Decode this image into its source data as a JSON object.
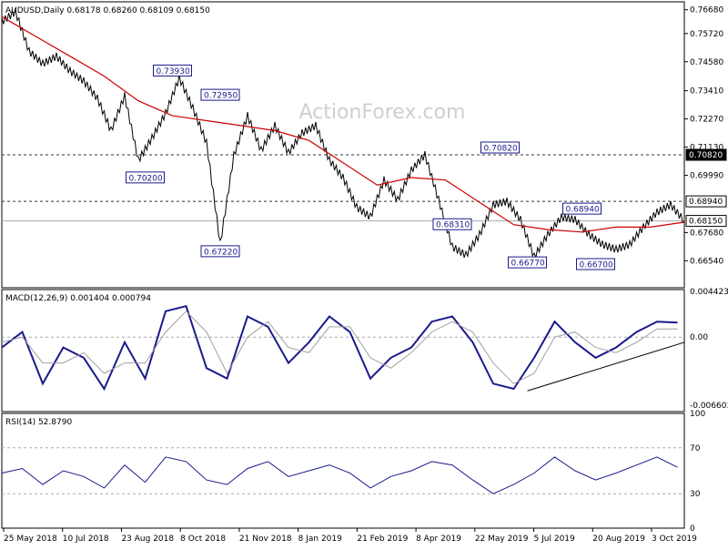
{
  "chart_data": [
    {
      "type": "line",
      "panel": "price",
      "title": "AUDUSD,Daily  0.68178 0.68260 0.68109 0.68150",
      "symbol": "AUDUSD",
      "timeframe": "Daily",
      "ohlc": {
        "open": "0.68178",
        "high": "0.68260",
        "low": "0.68109",
        "close": "0.68150"
      },
      "watermark": "ActionForex.com",
      "ylim": [
        0.6545,
        0.77
      ],
      "yticks": [
        "0.76680",
        "0.75720",
        "0.74580",
        "0.73410",
        "0.72270",
        "0.71130",
        "0.69990",
        "0.67680",
        "0.66540"
      ],
      "series": [
        {
          "name": "AUDUSD",
          "color": "#000000",
          "x": [
            0,
            2,
            4,
            6,
            8,
            10,
            12,
            14,
            16,
            18,
            20,
            22,
            24,
            26,
            28,
            30,
            32,
            34,
            36,
            38,
            40,
            42,
            44,
            46,
            48,
            50,
            52,
            54,
            56,
            58,
            60,
            62,
            64,
            66,
            68,
            70,
            72,
            74,
            76,
            78,
            80,
            82,
            84,
            86,
            88,
            90,
            92,
            94,
            96,
            98,
            100
          ],
          "values": [
            0.762,
            0.766,
            0.75,
            0.745,
            0.748,
            0.742,
            0.738,
            0.731,
            0.718,
            0.732,
            0.706,
            0.715,
            0.725,
            0.7393,
            0.727,
            0.713,
            0.6722,
            0.708,
            0.724,
            0.71,
            0.72,
            0.709,
            0.717,
            0.72,
            0.706,
            0.699,
            0.687,
            0.6831,
            0.698,
            0.69,
            0.702,
            0.7082,
            0.69,
            0.671,
            0.6677,
            0.676,
            0.688,
            0.6894,
            0.682,
            0.667,
            0.676,
            0.683,
            0.682,
            0.676,
            0.672,
            0.67,
            0.672,
            0.679,
            0.685,
            0.688,
            0.6815
          ]
        },
        {
          "name": "MA",
          "color": "#cc0000",
          "x": [
            0,
            5,
            10,
            15,
            20,
            25,
            30,
            35,
            40,
            45,
            50,
            55,
            60,
            65,
            70,
            75,
            80,
            85,
            90,
            95,
            100
          ],
          "values": [
            0.764,
            0.756,
            0.748,
            0.74,
            0.73,
            0.724,
            0.722,
            0.72,
            0.718,
            0.714,
            0.705,
            0.696,
            0.699,
            0.698,
            0.689,
            0.68,
            0.678,
            0.677,
            0.679,
            0.679,
            0.681
          ]
        }
      ],
      "annotations": [
        {
          "label": "0.73930",
          "x": 25,
          "y": 0.7393
        },
        {
          "label": "0.72950",
          "x": 32,
          "y": 0.7295
        },
        {
          "label": "0.70200",
          "x": 21,
          "y": 0.702
        },
        {
          "label": "0.67220",
          "x": 32,
          "y": 0.6722
        },
        {
          "label": "0.70820",
          "x": 73,
          "y": 0.7082
        },
        {
          "label": "0.68310",
          "x": 66,
          "y": 0.6831
        },
        {
          "label": "0.68940",
          "x": 85,
          "y": 0.6894
        },
        {
          "label": "0.66770",
          "x": 77,
          "y": 0.6677
        },
        {
          "label": "0.66700",
          "x": 87,
          "y": 0.667
        }
      ],
      "hlines": [
        {
          "label": "0.70820",
          "y": 0.7082,
          "style": "dashed"
        },
        {
          "label": "0.68940",
          "y": 0.6894,
          "style": "dashed"
        },
        {
          "label": "0.68150",
          "y": 0.6815,
          "style": "solid"
        }
      ],
      "grid": false
    },
    {
      "type": "line",
      "panel": "macd",
      "title": "MACD(12,26,9) 0.001404 0.000794",
      "ylim": [
        -0.0072,
        0.0046
      ],
      "yticks": [
        "0.004423",
        "0.00",
        "-0.006603"
      ],
      "series": [
        {
          "name": "MACD",
          "color": "#1a1a8c",
          "x": [
            0,
            3,
            6,
            9,
            12,
            15,
            18,
            21,
            24,
            27,
            30,
            33,
            36,
            39,
            42,
            45,
            48,
            51,
            54,
            57,
            60,
            63,
            66,
            69,
            72,
            75,
            78,
            81,
            84,
            87,
            90,
            93,
            96,
            99
          ],
          "values": [
            -0.001,
            0.0005,
            -0.0045,
            -0.001,
            -0.002,
            -0.005,
            -0.0005,
            -0.004,
            0.0025,
            0.003,
            -0.003,
            -0.004,
            0.002,
            0.001,
            -0.0025,
            -0.0005,
            0.002,
            0.0005,
            -0.004,
            -0.002,
            -0.001,
            0.0015,
            0.002,
            -0.0005,
            -0.0045,
            -0.005,
            -0.002,
            0.0015,
            -0.0005,
            -0.002,
            -0.001,
            0.0005,
            0.0015,
            0.0014
          ]
        },
        {
          "name": "Signal",
          "color": "#a0a0a0",
          "x": [
            0,
            3,
            6,
            9,
            12,
            15,
            18,
            21,
            24,
            27,
            30,
            33,
            36,
            39,
            42,
            45,
            48,
            51,
            54,
            57,
            60,
            63,
            66,
            69,
            72,
            75,
            78,
            81,
            84,
            87,
            90,
            93,
            96,
            99
          ],
          "values": [
            -0.0005,
            0.0,
            -0.0025,
            -0.0025,
            -0.0015,
            -0.0035,
            -0.0025,
            -0.0025,
            0.0005,
            0.0025,
            0.0005,
            -0.0035,
            0.0,
            0.0015,
            -0.001,
            -0.0015,
            0.001,
            0.001,
            -0.002,
            -0.003,
            -0.0015,
            0.0005,
            0.0015,
            0.0005,
            -0.0025,
            -0.0045,
            -0.0035,
            0.0,
            0.0005,
            -0.001,
            -0.0015,
            -0.0005,
            0.0008,
            0.0008
          ]
        }
      ],
      "trendlines": [
        {
          "from": [
            77,
            -0.0052
          ],
          "to": [
            100,
            -0.0005
          ]
        }
      ],
      "zero_line": true
    },
    {
      "type": "line",
      "panel": "rsi",
      "title": "RSI(14) 52.8790",
      "ylim": [
        0,
        100
      ],
      "yticks": [
        "100",
        "70",
        "30",
        "0"
      ],
      "levels": [
        70,
        30
      ],
      "series": [
        {
          "name": "RSI",
          "color": "#1a1a8c",
          "x": [
            0,
            3,
            6,
            9,
            12,
            15,
            18,
            21,
            24,
            27,
            30,
            33,
            36,
            39,
            42,
            45,
            48,
            51,
            54,
            57,
            60,
            63,
            66,
            69,
            72,
            75,
            78,
            81,
            84,
            87,
            90,
            93,
            96,
            99
          ],
          "values": [
            48,
            52,
            38,
            50,
            45,
            35,
            55,
            40,
            62,
            58,
            42,
            38,
            52,
            58,
            45,
            50,
            55,
            48,
            35,
            45,
            50,
            58,
            55,
            42,
            30,
            38,
            48,
            62,
            50,
            42,
            48,
            55,
            62,
            53
          ]
        }
      ],
      "x_axis": [
        "25 May 2018",
        "10 Jul 2018",
        "23 Aug 2018",
        "8 Oct 2018",
        "21 Nov 2018",
        "8 Jan 2019",
        "21 Feb 2019",
        "8 Apr 2019",
        "22 May 2019",
        "5 Jul 2019",
        "20 Aug 2019",
        "3 Oct 2019"
      ]
    }
  ]
}
